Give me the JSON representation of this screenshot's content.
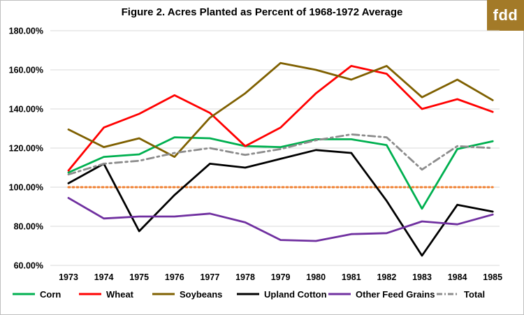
{
  "logo": {
    "text": "fdd",
    "color": "#a37a28"
  },
  "chart_data": {
    "type": "line",
    "title": "Figure 2. Acres Planted as Percent of 1968-1972 Average",
    "xlabel": "",
    "ylabel": "",
    "categories": [
      "1973",
      "1974",
      "1975",
      "1976",
      "1977",
      "1978",
      "1979",
      "1980",
      "1981",
      "1982",
      "1983",
      "1984",
      "1985"
    ],
    "ylim": [
      60,
      180
    ],
    "yticks": [
      "60.00%",
      "80.00%",
      "100.00%",
      "120.00%",
      "140.00%",
      "160.00%",
      "180.00%"
    ],
    "grid": true,
    "legend_position": "bottom",
    "reference_line": {
      "value": 100,
      "color": "#f08030",
      "style": "dotted"
    },
    "series": [
      {
        "name": "Corn",
        "color": "#00b050",
        "dash": "solid",
        "values": [
          107.5,
          115.5,
          116.8,
          125.5,
          125.0,
          121.0,
          120.5,
          124.5,
          124.5,
          121.5,
          89.0,
          119.5,
          123.5
        ]
      },
      {
        "name": "Wheat",
        "color": "#ff0000",
        "dash": "solid",
        "values": [
          108.5,
          130.5,
          137.5,
          147.0,
          138.0,
          121.0,
          130.5,
          148.0,
          162.0,
          158.0,
          140.0,
          145.0,
          138.5
        ]
      },
      {
        "name": "Soybeans",
        "color": "#7f6000",
        "dash": "solid",
        "values": [
          129.5,
          120.5,
          125.0,
          115.5,
          135.5,
          148.0,
          163.5,
          160.0,
          155.0,
          162.0,
          146.0,
          155.0,
          144.5
        ]
      },
      {
        "name": "Upland Cotton",
        "color": "#000000",
        "dash": "solid",
        "values": [
          102.0,
          112.0,
          77.5,
          96.0,
          112.0,
          110.0,
          114.5,
          119.0,
          117.5,
          93.0,
          65.0,
          91.0,
          87.5
        ]
      },
      {
        "name": "Other Feed Grains",
        "color": "#7030a0",
        "dash": "solid",
        "values": [
          94.5,
          84.0,
          85.0,
          85.0,
          86.5,
          82.0,
          73.0,
          72.5,
          76.0,
          76.5,
          82.5,
          81.0,
          86.0
        ]
      },
      {
        "name": "Total",
        "color": "#8c8c8c",
        "dash": "dashdot",
        "values": [
          106.5,
          112.0,
          113.5,
          117.5,
          120.0,
          116.5,
          119.5,
          124.0,
          127.0,
          125.5,
          109.0,
          121.0,
          120.0
        ]
      }
    ]
  }
}
